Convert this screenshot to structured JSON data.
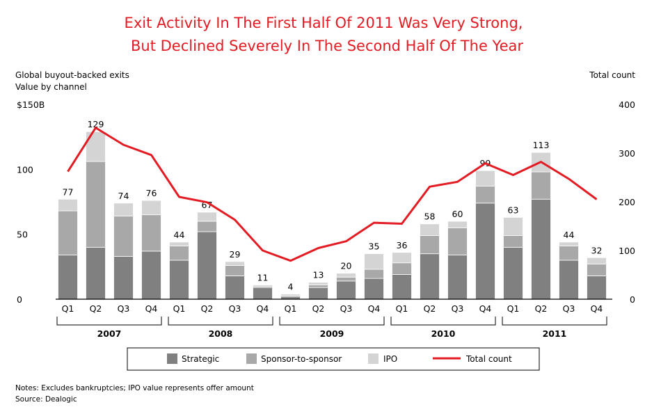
{
  "chart_data": {
    "type": "bar",
    "title_lines": [
      "Exit Activity In The First Half Of 2011 Was Very Strong,",
      "But Declined Severely In The Second Half Of The Year"
    ],
    "left_axis_label_lines": [
      "Global buyout-backed exits",
      "Value by channel"
    ],
    "right_axis_label": "Total count",
    "left_ticks": [
      "$150B",
      "100",
      "50",
      "0"
    ],
    "left_tick_values": [
      150,
      100,
      50,
      0
    ],
    "right_ticks": [
      "400",
      "300",
      "200",
      "100",
      "0"
    ],
    "right_tick_values": [
      400,
      300,
      200,
      100,
      0
    ],
    "ylim_left": [
      0,
      150
    ],
    "ylim_right": [
      0,
      400
    ],
    "years": [
      "2007",
      "2008",
      "2009",
      "2010",
      "2011"
    ],
    "quarter_labels": [
      "Q1",
      "Q2",
      "Q3",
      "Q4"
    ],
    "series": [
      {
        "name": "Strategic",
        "color": "#808080",
        "values": [
          34,
          40,
          33,
          37,
          30,
          52,
          18,
          9,
          2,
          9,
          14,
          16,
          19,
          35,
          34,
          74,
          40,
          77,
          30,
          18
        ]
      },
      {
        "name": "Sponsor-to-sponsor",
        "color": "#a8a8a8",
        "values": [
          34,
          66,
          31,
          28,
          11,
          8,
          8,
          1,
          1,
          2,
          3,
          7,
          9,
          14,
          21,
          13,
          9,
          21,
          11,
          9
        ]
      },
      {
        "name": "IPO",
        "color": "#d4d4d4",
        "values": [
          9,
          23,
          10,
          11,
          3,
          7,
          3,
          1,
          1,
          2,
          3,
          12,
          8,
          9,
          5,
          12,
          14,
          15,
          3,
          5
        ]
      }
    ],
    "totals_labels": [
      "77",
      "129",
      "74",
      "76",
      "44",
      "67",
      "29",
      "11",
      "4",
      "13",
      "20",
      "35",
      "36",
      "58",
      "60",
      "99",
      "63",
      "113",
      "44",
      "32"
    ],
    "totals": [
      77,
      129,
      74,
      76,
      44,
      67,
      29,
      11,
      4,
      13,
      20,
      35,
      36,
      58,
      60,
      99,
      63,
      113,
      44,
      32
    ],
    "line": {
      "name": "Total count",
      "color": "#e31b23",
      "values": [
        262,
        352,
        317,
        296,
        210,
        199,
        163,
        100,
        79,
        105,
        119,
        157,
        155,
        231,
        241,
        279,
        255,
        282,
        247,
        205
      ]
    },
    "legend": [
      "Strategic",
      "Sponsor-to-sponsor",
      "IPO",
      "Total count"
    ],
    "notes": [
      "Notes: Excludes bankruptcies; IPO value represents offer amount",
      "Source: Dealogic"
    ]
  },
  "colors": {
    "title": "#e31b23",
    "text": "#000000",
    "axis": "#000000"
  }
}
